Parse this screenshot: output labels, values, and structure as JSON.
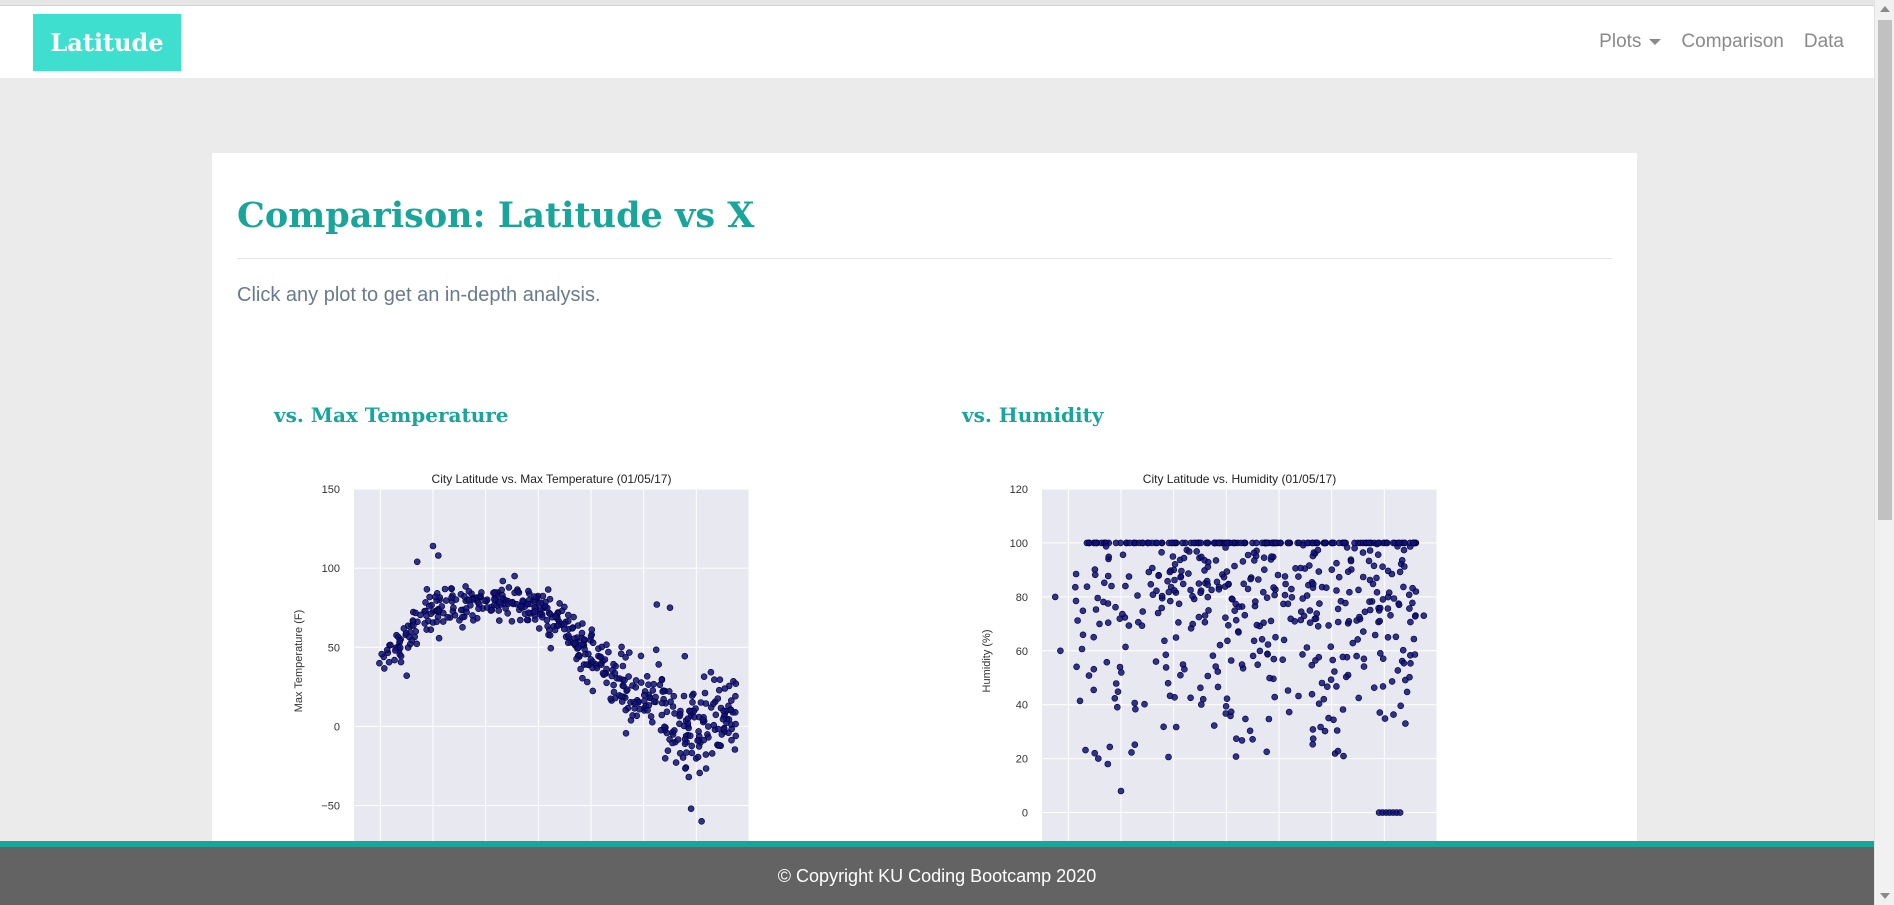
{
  "brand": "Latitude",
  "nav": {
    "plots": "Plots",
    "comparison": "Comparison",
    "data": "Data"
  },
  "page": {
    "title": "Comparison: Latitude vs X",
    "subtitle": "Click any plot to get an in-depth analysis."
  },
  "footer": "© Copyright KU Coding Bootcamp 2020",
  "colors": {
    "accent": "#1aa59b",
    "brand_bg": "#3fdfcf",
    "footer_bg": "#636363",
    "plot_bg": "#e8e8f0",
    "point": "#10107a"
  },
  "chart_data": [
    {
      "type": "scatter",
      "heading": "vs. Max Temperature",
      "title": "City Latitude vs. Max Temperature (01/05/17)",
      "xlabel": "",
      "ylabel": "Max Temperature (F)",
      "xlim": [
        -60,
        90
      ],
      "ylim": [
        -80,
        150
      ],
      "yticks": [
        150,
        100,
        50,
        0,
        -50
      ],
      "grid": true,
      "n_points": 520,
      "seed": 7,
      "trend": [
        [
          -50,
          40
        ],
        [
          -40,
          55
        ],
        [
          -30,
          72
        ],
        [
          -20,
          78
        ],
        [
          -10,
          80
        ],
        [
          0,
          79
        ],
        [
          10,
          75
        ],
        [
          20,
          65
        ],
        [
          30,
          45
        ],
        [
          40,
          30
        ],
        [
          50,
          18
        ],
        [
          60,
          8
        ],
        [
          70,
          -5
        ],
        [
          80,
          10
        ]
      ],
      "spread": [
        [
          -50,
          6
        ],
        [
          -30,
          12
        ],
        [
          -10,
          8
        ],
        [
          10,
          9
        ],
        [
          30,
          14
        ],
        [
          50,
          16
        ],
        [
          70,
          24
        ],
        [
          80,
          18
        ]
      ],
      "outliers": [
        {
          "x": -30,
          "y": 114
        },
        {
          "x": -28,
          "y": 108
        },
        {
          "x": -36,
          "y": 104
        },
        {
          "x": -40,
          "y": 32
        },
        {
          "x": 55,
          "y": 77
        },
        {
          "x": 60,
          "y": 75
        },
        {
          "x": 72,
          "y": -60
        },
        {
          "x": 68,
          "y": -52
        },
        {
          "x": 85,
          "y": 27
        },
        {
          "x": 85,
          "y": -6
        }
      ]
    },
    {
      "type": "scatter",
      "heading": "vs. Humidity",
      "title": "City Latitude vs. Humidity (01/05/17)",
      "xlabel": "",
      "ylabel": "Humidity (%)",
      "xlim": [
        -60,
        90
      ],
      "ylim": [
        -15,
        120
      ],
      "yticks": [
        120,
        100,
        80,
        60,
        40,
        20,
        0
      ],
      "grid": true,
      "n_points": 560,
      "seed": 11,
      "band_at_100": true,
      "low_cluster": {
        "x": [
          68,
          76
        ],
        "y": 0
      },
      "outliers": [
        {
          "x": -55,
          "y": 80
        },
        {
          "x": -53,
          "y": 60
        },
        {
          "x": -30,
          "y": 8
        },
        {
          "x": -35,
          "y": 18
        },
        {
          "x": -40,
          "y": 22
        },
        {
          "x": 85,
          "y": 73
        },
        {
          "x": 82,
          "y": 82
        },
        {
          "x": 78,
          "y": 33
        }
      ]
    }
  ]
}
